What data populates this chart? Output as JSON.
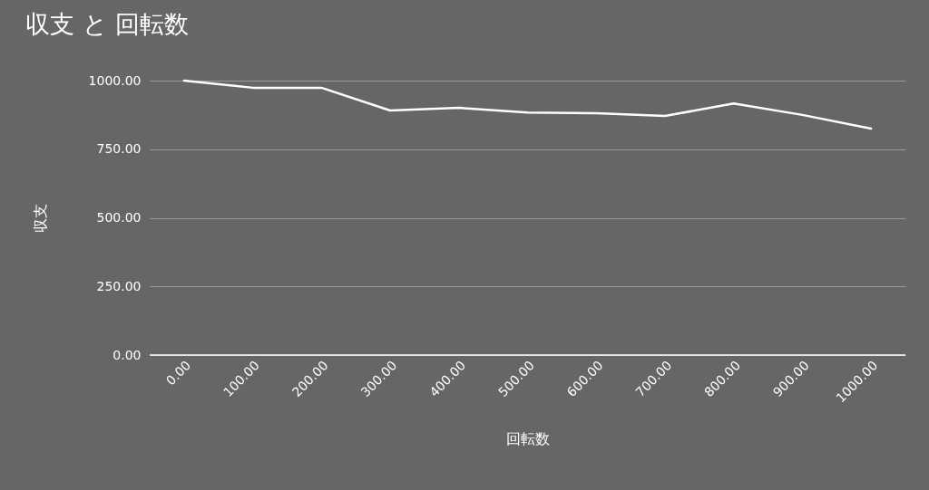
{
  "chart_data": {
    "type": "line",
    "title": "収支 と 回転数",
    "xlabel": "回転数",
    "ylabel": "収支",
    "x": [
      0,
      100,
      200,
      300,
      400,
      500,
      600,
      700,
      800,
      900,
      1000
    ],
    "series": [
      {
        "color": "#ffffff",
        "values": [
          1000,
          974,
          974,
          891,
          901,
          884,
          881,
          871,
          917,
          875,
          825
        ]
      }
    ],
    "xlim": [
      -50,
      1050
    ],
    "xticks": [
      {
        "value": 0,
        "label": "0.00"
      },
      {
        "value": 100,
        "label": "100.00"
      },
      {
        "value": 200,
        "label": "200.00"
      },
      {
        "value": 300,
        "label": "300.00"
      },
      {
        "value": 400,
        "label": "400.00"
      },
      {
        "value": 500,
        "label": "500.00"
      },
      {
        "value": 600,
        "label": "600.00"
      },
      {
        "value": 700,
        "label": "700.00"
      },
      {
        "value": 800,
        "label": "800.00"
      },
      {
        "value": 900,
        "label": "900.00"
      },
      {
        "value": 1000,
        "label": "1000.00"
      }
    ],
    "ylim": [
      0,
      1000
    ],
    "yticks": [
      {
        "value": 0,
        "label": "0.00"
      },
      {
        "value": 250,
        "label": "250.00"
      },
      {
        "value": 500,
        "label": "500.00"
      },
      {
        "value": 750,
        "label": "750.00"
      },
      {
        "value": 1000,
        "label": "1000.00"
      }
    ],
    "grid": "y",
    "marker": "none",
    "line_style": "solid"
  }
}
